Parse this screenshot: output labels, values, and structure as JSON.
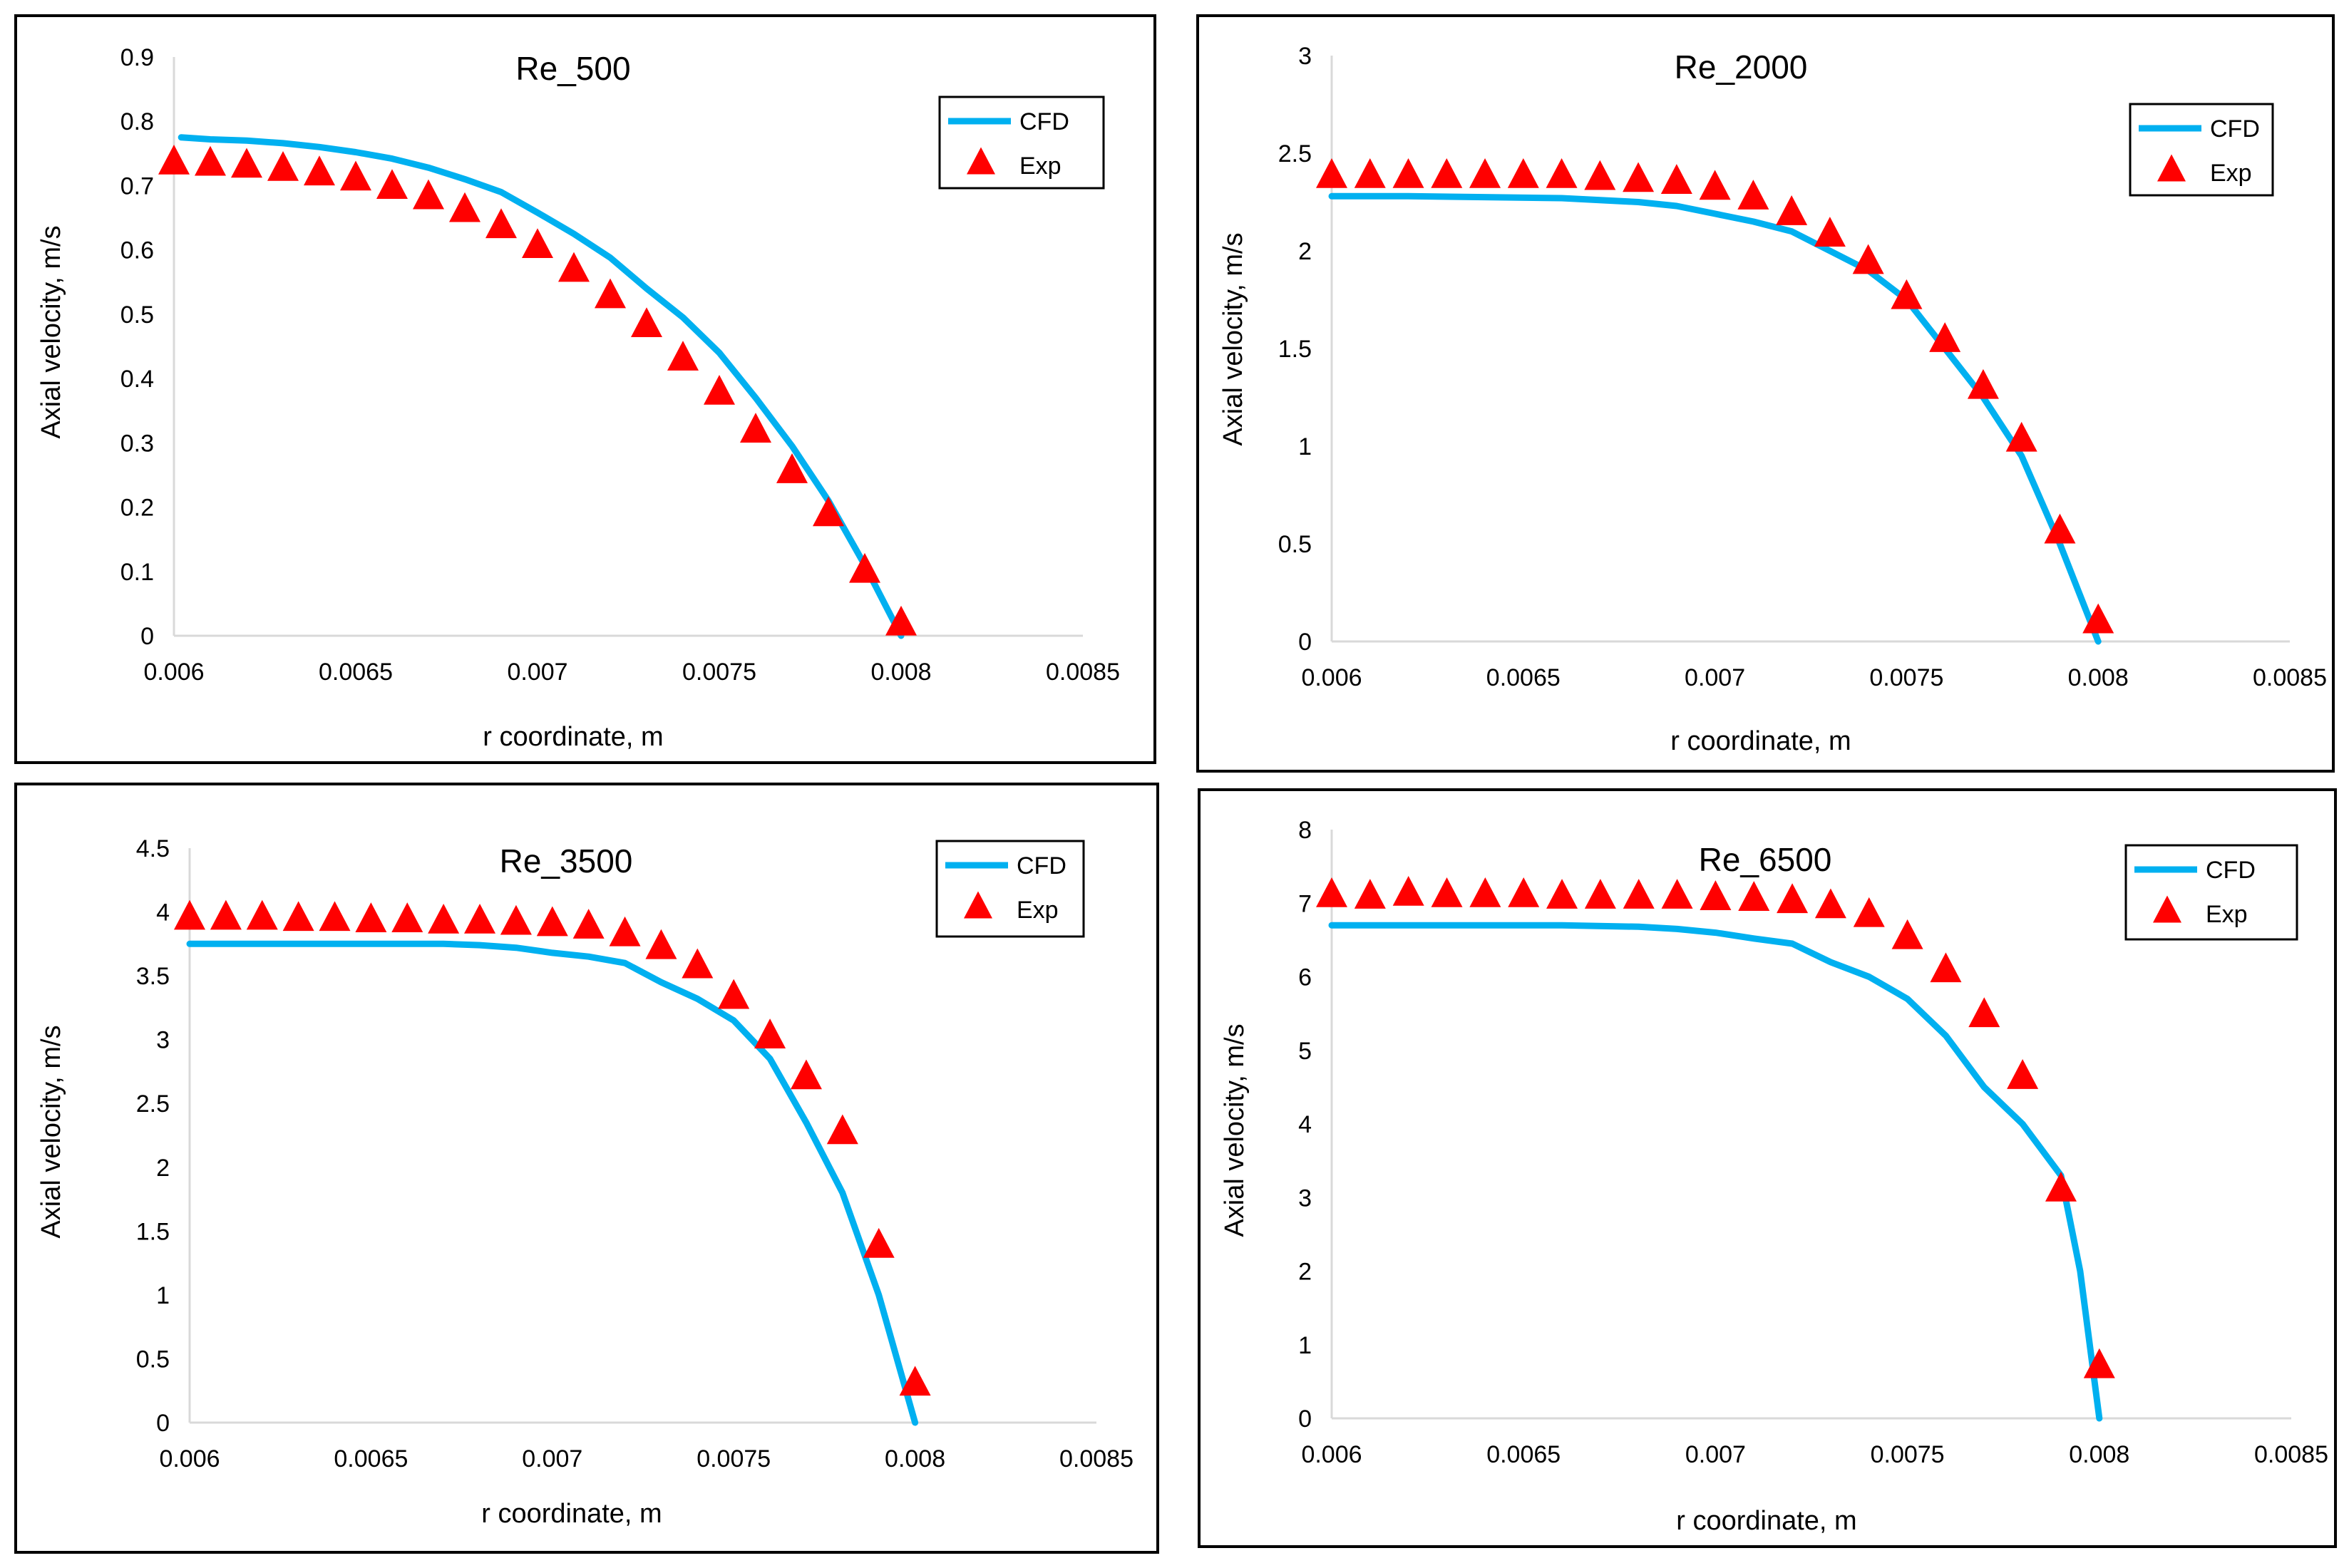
{
  "colors": {
    "cfd": "#00B0F0",
    "exp": "#FF0000",
    "axis": "#D9D9D9",
    "border": "#000000"
  },
  "chart_data": [
    {
      "type": "line+scatter",
      "title": "Re_500",
      "xlabel": "r coordinate, m",
      "ylabel": "Axial velocity, m/s",
      "xlim": [
        0.006,
        0.0085
      ],
      "ylim": [
        0,
        0.9
      ],
      "xticks": [
        0.006,
        0.0065,
        0.007,
        0.0075,
        0.008,
        0.0085
      ],
      "xtick_labels": [
        "0.006",
        "0.0065",
        "0.007",
        "0.0075",
        "0.008",
        "0.0085"
      ],
      "yticks": [
        0,
        0.1,
        0.2,
        0.3,
        0.4,
        0.5,
        0.6,
        0.7,
        0.8,
        0.9
      ],
      "ytick_labels": [
        "0",
        "0.1",
        "0.2",
        "0.3",
        "0.4",
        "0.5",
        "0.6",
        "0.7",
        "0.8",
        "0.9"
      ],
      "legend": [
        "CFD",
        "Exp"
      ],
      "legend_position": "top-right",
      "series": [
        {
          "name": "CFD",
          "kind": "line",
          "x": [
            0.00602,
            0.0061,
            0.0062,
            0.0063,
            0.0064,
            0.0065,
            0.0066,
            0.0067,
            0.0068,
            0.0069,
            0.007,
            0.0071,
            0.0072,
            0.0073,
            0.0074,
            0.0075,
            0.0076,
            0.0077,
            0.0078,
            0.0079,
            0.008
          ],
          "y": [
            0.775,
            0.772,
            0.77,
            0.766,
            0.76,
            0.752,
            0.742,
            0.728,
            0.71,
            0.69,
            0.658,
            0.625,
            0.588,
            0.54,
            0.495,
            0.44,
            0.37,
            0.295,
            0.21,
            0.11,
            0.0
          ]
        },
        {
          "name": "Exp",
          "kind": "scatter",
          "x": [
            0.006,
            0.0061,
            0.0062,
            0.0063,
            0.0064,
            0.0065,
            0.0066,
            0.0067,
            0.0068,
            0.0069,
            0.007,
            0.0071,
            0.0072,
            0.0073,
            0.0074,
            0.0075,
            0.0076,
            0.0077,
            0.0078,
            0.0079,
            0.008
          ],
          "y": [
            0.735,
            0.733,
            0.73,
            0.725,
            0.718,
            0.71,
            0.697,
            0.681,
            0.661,
            0.636,
            0.605,
            0.568,
            0.527,
            0.482,
            0.43,
            0.377,
            0.318,
            0.255,
            0.188,
            0.1,
            0.018
          ]
        }
      ]
    },
    {
      "type": "line+scatter",
      "title": "Re_2000",
      "xlabel": "r coordinate, m",
      "ylabel": "Axial velocity, m/s",
      "xlim": [
        0.006,
        0.0085
      ],
      "ylim": [
        0,
        3
      ],
      "xticks": [
        0.006,
        0.0065,
        0.007,
        0.0075,
        0.008,
        0.0085
      ],
      "xtick_labels": [
        "0.006",
        "0.0065",
        "0.007",
        "0.0075",
        "0.008",
        "0.0085"
      ],
      "yticks": [
        0,
        0.5,
        1,
        1.5,
        2,
        2.5,
        3
      ],
      "ytick_labels": [
        "0",
        "0.5",
        "1",
        "1.5",
        "2",
        "2.5",
        "3"
      ],
      "legend": [
        "CFD",
        "Exp"
      ],
      "legend_position": "top-right",
      "series": [
        {
          "name": "CFD",
          "kind": "line",
          "x": [
            0.006,
            0.0062,
            0.0064,
            0.0066,
            0.0068,
            0.0069,
            0.007,
            0.0071,
            0.0072,
            0.0073,
            0.0074,
            0.0075,
            0.0076,
            0.0077,
            0.0078,
            0.0079,
            0.008
          ],
          "y": [
            2.28,
            2.28,
            2.275,
            2.27,
            2.25,
            2.23,
            2.19,
            2.15,
            2.1,
            2.0,
            1.9,
            1.75,
            1.5,
            1.25,
            0.95,
            0.5,
            0.0
          ]
        },
        {
          "name": "Exp",
          "kind": "scatter",
          "x": [
            0.006,
            0.0061,
            0.0062,
            0.0063,
            0.0064,
            0.0065,
            0.0066,
            0.0067,
            0.0068,
            0.0069,
            0.007,
            0.0071,
            0.0072,
            0.0073,
            0.0074,
            0.0075,
            0.0076,
            0.0077,
            0.0078,
            0.0079,
            0.008
          ],
          "y": [
            2.38,
            2.38,
            2.38,
            2.38,
            2.38,
            2.38,
            2.38,
            2.37,
            2.36,
            2.35,
            2.32,
            2.27,
            2.19,
            2.08,
            1.94,
            1.76,
            1.54,
            1.3,
            1.03,
            0.56,
            0.1
          ]
        }
      ]
    },
    {
      "type": "line+scatter",
      "title": "Re_3500",
      "xlabel": "r coordinate, m",
      "ylabel": "Axial velocity, m/s",
      "xlim": [
        0.006,
        0.0085
      ],
      "ylim": [
        0,
        4.5
      ],
      "xticks": [
        0.006,
        0.0065,
        0.007,
        0.0075,
        0.008,
        0.0085
      ],
      "xtick_labels": [
        "0.006",
        "0.0065",
        "0.007",
        "0.0075",
        "0.008",
        "0.0085"
      ],
      "yticks": [
        0,
        0.5,
        1,
        1.5,
        2,
        2.5,
        3,
        3.5,
        4,
        4.5
      ],
      "ytick_labels": [
        "0",
        "0.5",
        "1",
        "1.5",
        "2",
        "2.5",
        "3",
        "3.5",
        "4",
        "4.5"
      ],
      "legend": [
        "CFD",
        "Exp"
      ],
      "legend_position": "top-right",
      "series": [
        {
          "name": "CFD",
          "kind": "line",
          "x": [
            0.006,
            0.0063,
            0.0066,
            0.0067,
            0.0068,
            0.0069,
            0.007,
            0.0071,
            0.0072,
            0.0073,
            0.0074,
            0.0075,
            0.0076,
            0.0077,
            0.0078,
            0.0079,
            0.008
          ],
          "y": [
            3.75,
            3.75,
            3.75,
            3.75,
            3.74,
            3.72,
            3.68,
            3.65,
            3.6,
            3.45,
            3.32,
            3.15,
            2.85,
            2.35,
            1.8,
            1.0,
            0.0
          ]
        },
        {
          "name": "Exp",
          "kind": "scatter",
          "x": [
            0.006,
            0.0061,
            0.0062,
            0.0063,
            0.0064,
            0.0065,
            0.0066,
            0.0067,
            0.0068,
            0.0069,
            0.007,
            0.0071,
            0.0072,
            0.0073,
            0.0074,
            0.0075,
            0.0076,
            0.0077,
            0.0078,
            0.0079,
            0.008
          ],
          "y": [
            3.95,
            3.95,
            3.95,
            3.94,
            3.94,
            3.93,
            3.93,
            3.92,
            3.92,
            3.91,
            3.9,
            3.88,
            3.82,
            3.72,
            3.57,
            3.33,
            3.02,
            2.7,
            2.27,
            1.38,
            0.3
          ]
        }
      ]
    },
    {
      "type": "line+scatter",
      "title": "Re_6500",
      "xlabel": "r coordinate, m",
      "ylabel": "Axial velocity, m/s",
      "xlim": [
        0.006,
        0.0085
      ],
      "ylim": [
        0,
        8
      ],
      "xticks": [
        0.006,
        0.0065,
        0.007,
        0.0075,
        0.008,
        0.0085
      ],
      "xtick_labels": [
        "0.006",
        "0.0065",
        "0.007",
        "0.0075",
        "0.008",
        "0.0085"
      ],
      "yticks": [
        0,
        1,
        2,
        3,
        4,
        5,
        6,
        7,
        8
      ],
      "ytick_labels": [
        "0",
        "1",
        "2",
        "3",
        "4",
        "5",
        "6",
        "7",
        "8"
      ],
      "legend": [
        "CFD",
        "Exp"
      ],
      "legend_position": "top-right",
      "series": [
        {
          "name": "CFD",
          "kind": "line",
          "x": [
            0.006,
            0.0063,
            0.0066,
            0.0068,
            0.0069,
            0.007,
            0.0071,
            0.0072,
            0.0073,
            0.0074,
            0.0075,
            0.0076,
            0.0077,
            0.0078,
            0.0079,
            0.00795,
            0.008
          ],
          "y": [
            6.7,
            6.7,
            6.7,
            6.68,
            6.65,
            6.6,
            6.52,
            6.45,
            6.2,
            6.0,
            5.7,
            5.2,
            4.5,
            4.0,
            3.3,
            2.0,
            0.0
          ]
        },
        {
          "name": "Exp",
          "kind": "scatter",
          "x": [
            0.006,
            0.0061,
            0.0062,
            0.0063,
            0.0064,
            0.0065,
            0.0066,
            0.0067,
            0.0068,
            0.0069,
            0.007,
            0.0071,
            0.0072,
            0.0073,
            0.0074,
            0.0075,
            0.0076,
            0.0077,
            0.0078,
            0.0079,
            0.008
          ],
          "y": [
            7.1,
            7.08,
            7.12,
            7.1,
            7.1,
            7.1,
            7.08,
            7.08,
            7.08,
            7.08,
            7.06,
            7.05,
            7.02,
            6.95,
            6.83,
            6.53,
            6.08,
            5.47,
            4.63,
            3.1,
            0.7
          ]
        }
      ]
    }
  ]
}
